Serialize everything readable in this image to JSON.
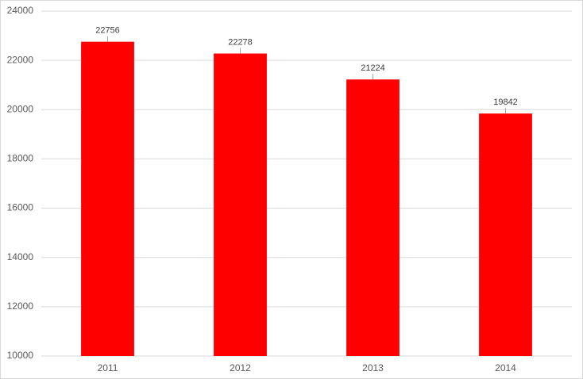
{
  "chart_data": {
    "type": "bar",
    "categories": [
      "2011",
      "2012",
      "2013",
      "2014"
    ],
    "values": [
      22756,
      22278,
      21224,
      19842
    ],
    "color": "#ff0000",
    "ylim": [
      10000,
      24000
    ],
    "yticks": [
      10000,
      12000,
      14000,
      16000,
      18000,
      20000,
      22000,
      24000
    ],
    "grid": true
  }
}
